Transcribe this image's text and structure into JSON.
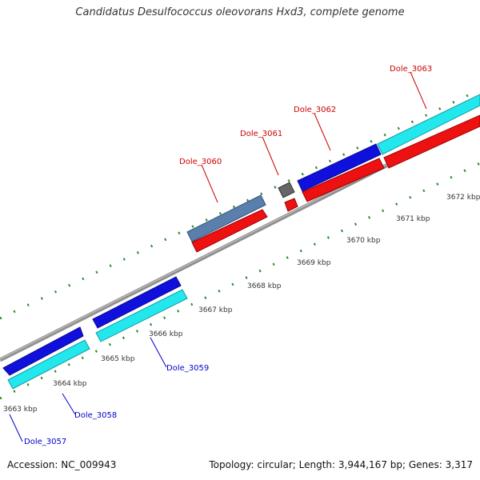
{
  "title": "Candidatus Desulfococcus oleovorans Hxd3, complete genome",
  "accession": "Accession: NC_009943",
  "topology": "Topology: circular; Length: 3,944,167 bp; Genes: 3,317",
  "colors": {
    "forward_gene": "#1010dd",
    "forward_gene_alt": "#22e8ee",
    "reverse_gene": "#ee1111",
    "rna_gene": "#5b7fad",
    "pseudo_gene": "#777777",
    "backbone": "#808080",
    "tick": "#2a8a2a",
    "label_forward": "#0000cc",
    "label_reverse": "#cc0000"
  },
  "ticks": [
    {
      "label": "3663 kbp"
    },
    {
      "label": "3664 kbp"
    },
    {
      "label": "3665 kbp"
    },
    {
      "label": "3666 kbp"
    },
    {
      "label": "3667 kbp"
    },
    {
      "label": "3668 kbp"
    },
    {
      "label": "3669 kbp"
    },
    {
      "label": "3670 kbp"
    },
    {
      "label": "3671 kbp"
    },
    {
      "label": "3672 kbp"
    }
  ],
  "genes": [
    {
      "label": "Dole_3057",
      "strand": "forward"
    },
    {
      "label": "Dole_3058",
      "strand": "forward"
    },
    {
      "label": "Dole_3059",
      "strand": "forward"
    },
    {
      "label": "Dole_3060",
      "strand": "reverse"
    },
    {
      "label": "Dole_3061",
      "strand": "reverse"
    },
    {
      "label": "Dole_3062",
      "strand": "reverse"
    },
    {
      "label": "Dole_3063",
      "strand": "reverse"
    }
  ]
}
